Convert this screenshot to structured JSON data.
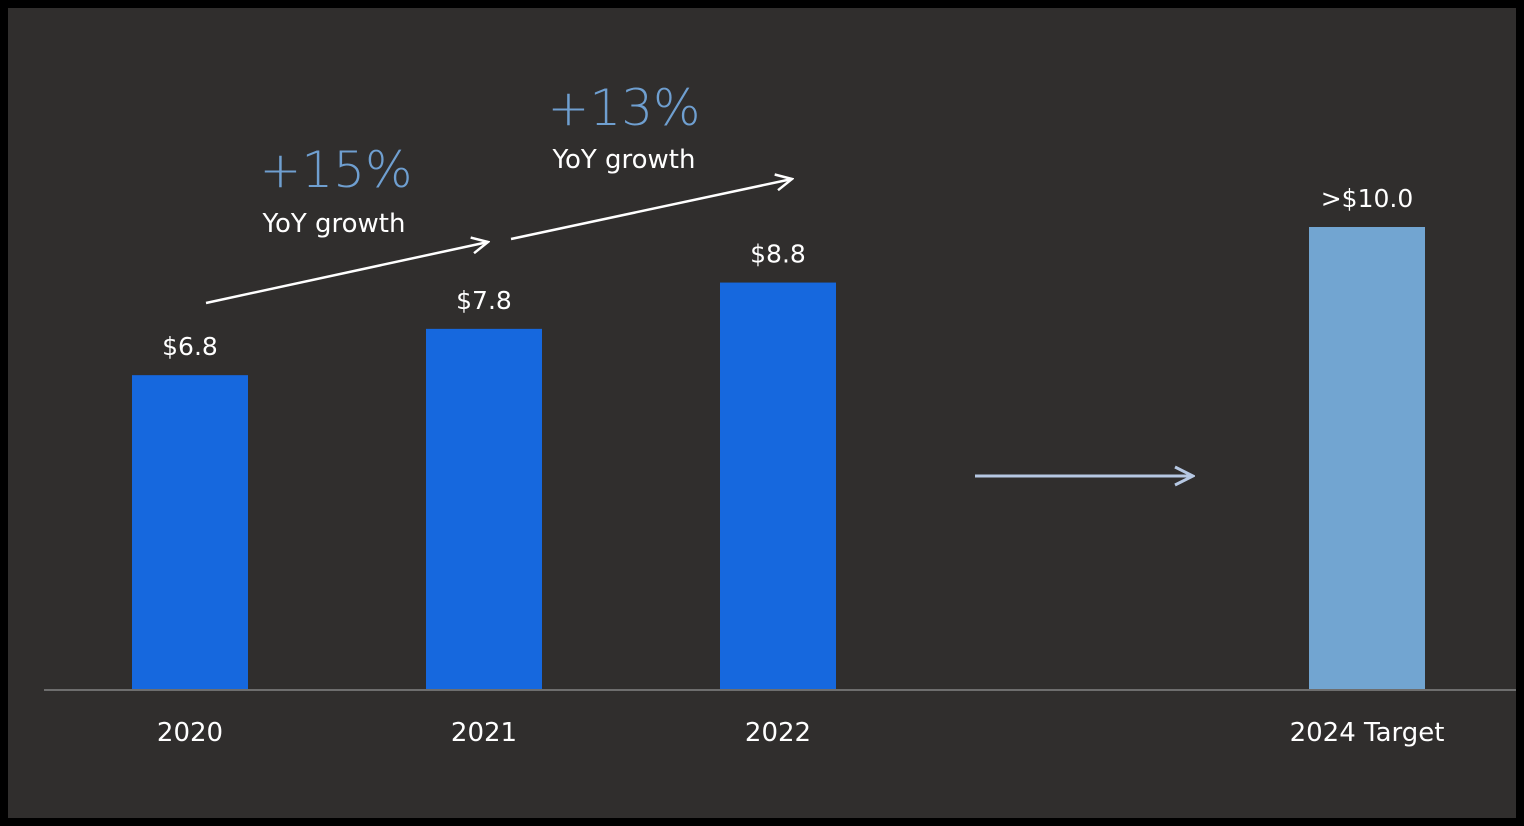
{
  "chart_data": {
    "type": "bar",
    "title": "",
    "xlabel": "",
    "ylabel": "",
    "ylim": [
      0,
      10.5
    ],
    "grid": false,
    "categories": [
      "2020",
      "2021",
      "2022",
      "2024 Target"
    ],
    "values": [
      6.8,
      7.8,
      8.8,
      10.0
    ],
    "data_labels": [
      "$6.8",
      "$7.8",
      "$8.8",
      ">$10.0"
    ],
    "colors": {
      "actual": "#1668de",
      "target": "#72a5d1",
      "axis": "#6e6e6e",
      "background": "#302e2d"
    },
    "annotations": [
      {
        "value": "+15%",
        "text": "YoY growth",
        "from": "2020",
        "to": "2021"
      },
      {
        "value": "+13%",
        "text": "YoY growth",
        "from": "2021",
        "to": "2022"
      }
    ]
  }
}
